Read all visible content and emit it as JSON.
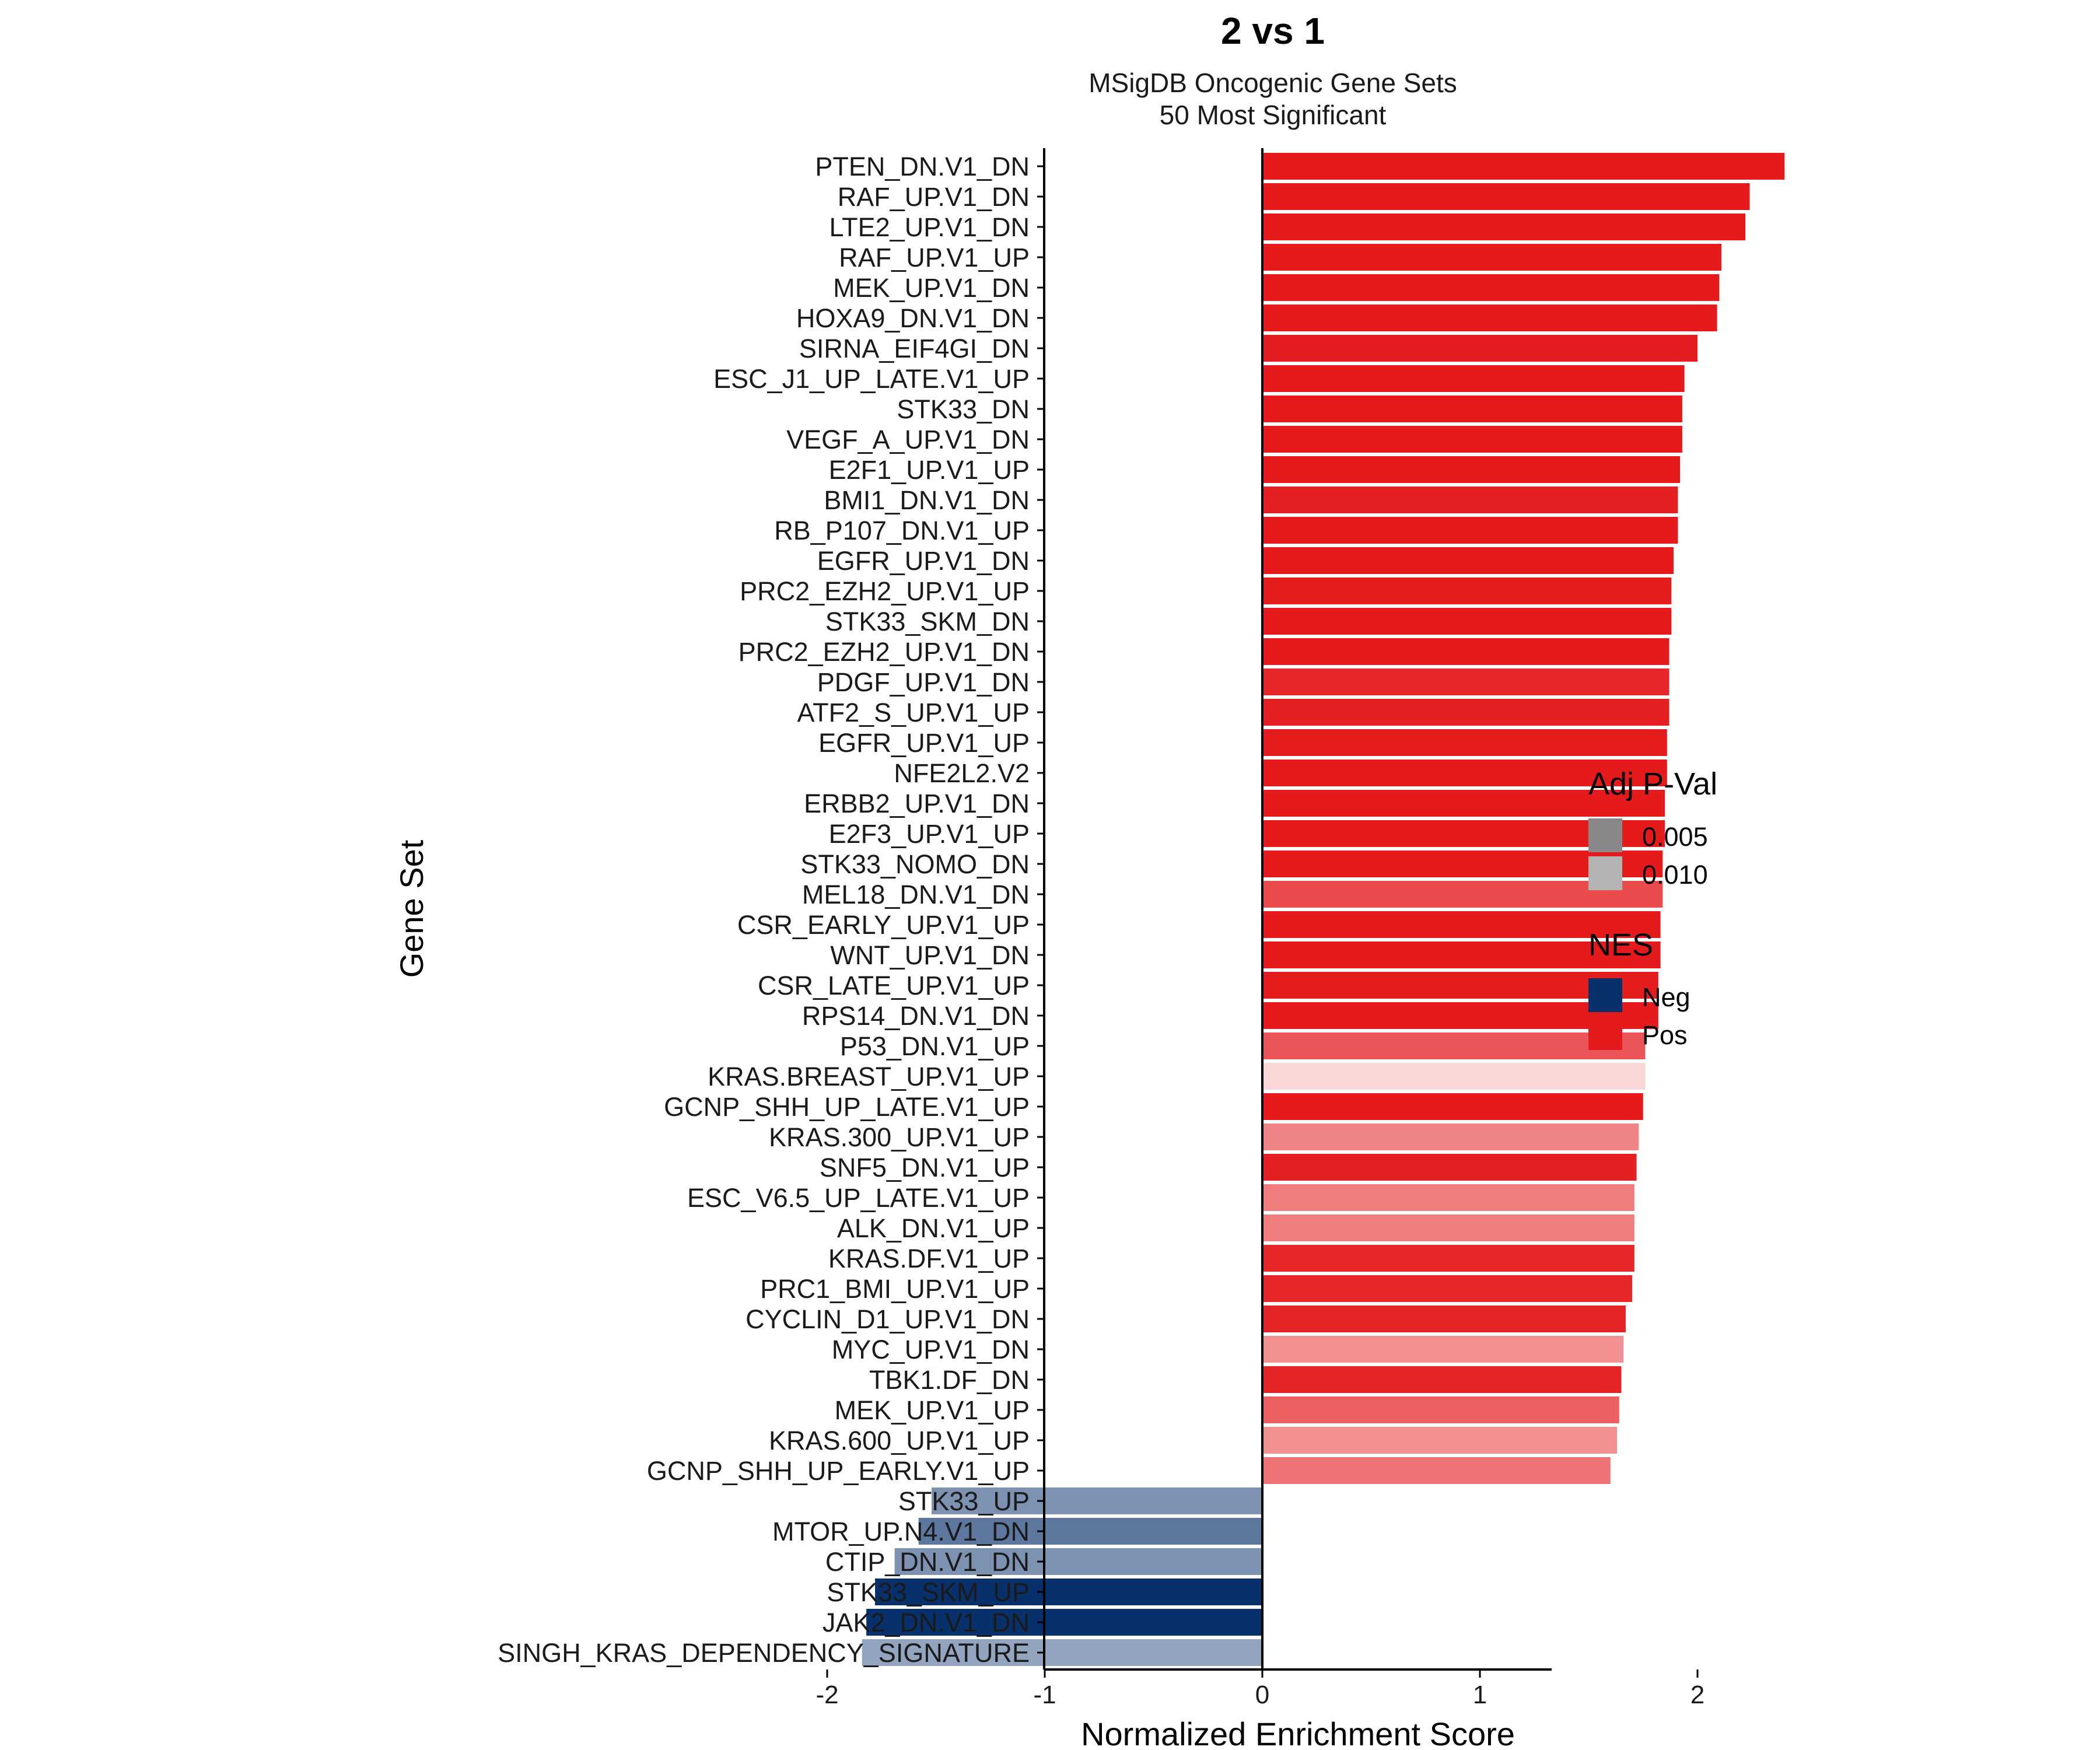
{
  "chart_data": {
    "type": "bar",
    "orientation": "horizontal",
    "title": "2 vs 1",
    "subtitle_lines": [
      "MSigDB Oncogenic Gene Sets",
      "50 Most Significant"
    ],
    "xlabel": "Normalized Enrichment Score",
    "ylabel": "Gene Set",
    "xlim": [
      -2.05,
      2.6
    ],
    "xticks": [
      -2,
      -1,
      0,
      1,
      2
    ],
    "xtick_labels": [
      "-2",
      "-1",
      "0",
      "1",
      "2"
    ],
    "grid": false,
    "colors": {
      "Pos": "#e41a1c",
      "Neg": "#08306b"
    },
    "bars": [
      {
        "label": "PTEN_DN.V1_DN",
        "nes": 2.4,
        "padj": 0.0005
      },
      {
        "label": "RAF_UP.V1_DN",
        "nes": 2.24,
        "padj": 0.0005
      },
      {
        "label": "LTE2_UP.V1_DN",
        "nes": 2.22,
        "padj": 0.0005
      },
      {
        "label": "RAF_UP.V1_UP",
        "nes": 2.11,
        "padj": 0.0005
      },
      {
        "label": "MEK_UP.V1_DN",
        "nes": 2.1,
        "padj": 0.0005
      },
      {
        "label": "HOXA9_DN.V1_DN",
        "nes": 2.09,
        "padj": 0.0005
      },
      {
        "label": "SIRNA_EIF4GI_DN",
        "nes": 2.0,
        "padj": 0.0007
      },
      {
        "label": "ESC_J1_UP_LATE.V1_UP",
        "nes": 1.94,
        "padj": 0.0005
      },
      {
        "label": "STK33_DN",
        "nes": 1.93,
        "padj": 0.0005
      },
      {
        "label": "VEGF_A_UP.V1_DN",
        "nes": 1.93,
        "padj": 0.0005
      },
      {
        "label": "E2F1_UP.V1_UP",
        "nes": 1.92,
        "padj": 0.0005
      },
      {
        "label": "BMI1_DN.V1_DN",
        "nes": 1.91,
        "padj": 0.0008
      },
      {
        "label": "RB_P107_DN.V1_UP",
        "nes": 1.91,
        "padj": 0.0005
      },
      {
        "label": "EGFR_UP.V1_DN",
        "nes": 1.89,
        "padj": 0.0005
      },
      {
        "label": "PRC2_EZH2_UP.V1_UP",
        "nes": 1.88,
        "padj": 0.0006
      },
      {
        "label": "STK33_SKM_DN",
        "nes": 1.88,
        "padj": 0.0005
      },
      {
        "label": "PRC2_EZH2_UP.V1_DN",
        "nes": 1.87,
        "padj": 0.0005
      },
      {
        "label": "PDGF_UP.V1_DN",
        "nes": 1.87,
        "padj": 0.0012
      },
      {
        "label": "ATF2_S_UP.V1_UP",
        "nes": 1.87,
        "padj": 0.0008
      },
      {
        "label": "EGFR_UP.V1_UP",
        "nes": 1.86,
        "padj": 0.0006
      },
      {
        "label": "NFE2L2.V2",
        "nes": 1.86,
        "padj": 0.0005
      },
      {
        "label": "ERBB2_UP.V1_DN",
        "nes": 1.85,
        "padj": 0.0005
      },
      {
        "label": "E2F3_UP.V1_UP",
        "nes": 1.85,
        "padj": 0.0005
      },
      {
        "label": "STK33_NOMO_DN",
        "nes": 1.84,
        "padj": 0.0005
      },
      {
        "label": "MEL18_DN.V1_DN",
        "nes": 1.84,
        "padj": 0.003
      },
      {
        "label": "CSR_EARLY_UP.V1_UP",
        "nes": 1.83,
        "padj": 0.0005
      },
      {
        "label": "WNT_UP.V1_DN",
        "nes": 1.83,
        "padj": 0.0005
      },
      {
        "label": "CSR_LATE_UP.V1_UP",
        "nes": 1.82,
        "padj": 0.0006
      },
      {
        "label": "RPS14_DN.V1_DN",
        "nes": 1.82,
        "padj": 0.0005
      },
      {
        "label": "P53_DN.V1_UP",
        "nes": 1.76,
        "padj": 0.0035
      },
      {
        "label": "KRAS.BREAST_UP.V1_UP",
        "nes": 1.76,
        "padj": 0.01
      },
      {
        "label": "GCNP_SHH_UP_LATE.V1_UP",
        "nes": 1.75,
        "padj": 0.0005
      },
      {
        "label": "KRAS.300_UP.V1_UP",
        "nes": 1.73,
        "padj": 0.0058
      },
      {
        "label": "SNF5_DN.V1_UP",
        "nes": 1.72,
        "padj": 0.0008
      },
      {
        "label": "ESC_V6.5_UP_LATE.V1_UP",
        "nes": 1.71,
        "padj": 0.0055
      },
      {
        "label": "ALK_DN.V1_UP",
        "nes": 1.71,
        "padj": 0.0055
      },
      {
        "label": "KRAS.DF.V1_UP",
        "nes": 1.71,
        "padj": 0.0012
      },
      {
        "label": "PRC1_BMI_UP.V1_UP",
        "nes": 1.7,
        "padj": 0.0012
      },
      {
        "label": "CYCLIN_D1_UP.V1_DN",
        "nes": 1.67,
        "padj": 0.001
      },
      {
        "label": "MYC_UP.V1_DN",
        "nes": 1.66,
        "padj": 0.0065
      },
      {
        "label": "TBK1.DF_DN",
        "nes": 1.65,
        "padj": 0.001
      },
      {
        "label": "MEK_UP.V1_UP",
        "nes": 1.64,
        "padj": 0.004
      },
      {
        "label": "KRAS.600_UP.V1_UP",
        "nes": 1.63,
        "padj": 0.0065
      },
      {
        "label": "GCNP_SHH_UP_EARLY.V1_UP",
        "nes": 1.6,
        "padj": 0.005
      },
      {
        "label": "STK33_UP",
        "nes": -1.52,
        "padj": 0.006
      },
      {
        "label": "MTOR_UP.N4.V1_DN",
        "nes": -1.58,
        "padj": 0.0045
      },
      {
        "label": "CTIP_DN.V1_DN",
        "nes": -1.69,
        "padj": 0.006
      },
      {
        "label": "STK33_SKM_UP",
        "nes": -1.78,
        "padj": 0.0005
      },
      {
        "label": "JAK2_DN.V1_DN",
        "nes": -1.82,
        "padj": 0.0005
      },
      {
        "label": "SINGH_KRAS_DEPENDENCY_SIGNATURE",
        "nes": -1.84,
        "padj": 0.007
      }
    ],
    "legend": {
      "placement": "right",
      "padj_title": "Adj P-Val",
      "padj_items": [
        {
          "label": "0.005",
          "value": 0.005,
          "color": "#888888"
        },
        {
          "label": "0.010",
          "value": 0.01,
          "color": "#b3b3b3"
        }
      ],
      "nes_title": "NES",
      "nes_items": [
        {
          "label": "Neg",
          "color": "#08306b"
        },
        {
          "label": "Pos",
          "color": "#e41a1c"
        }
      ]
    }
  }
}
